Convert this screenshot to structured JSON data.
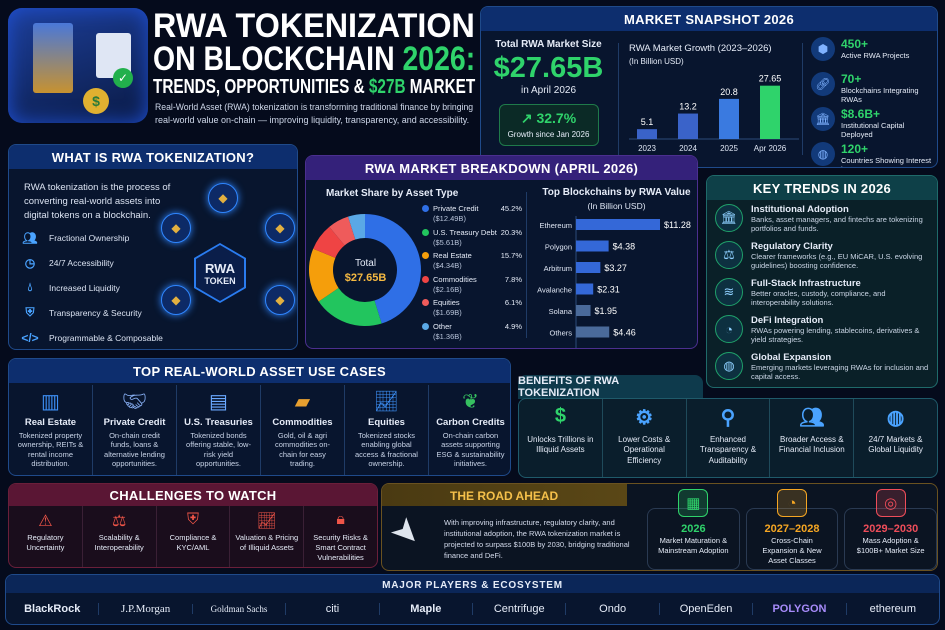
{
  "hero": {
    "title_line1": "RWA TOKENIZATION",
    "title_line2a": "ON BLOCKCHAIN ",
    "title_line2b": "2026:",
    "title_line3a": "TRENDS, OPPORTUNITIES & ",
    "title_line3b": "$27B",
    "title_line3c": " MARKET",
    "subtitle_line1": "Real-World Asset (RWA) tokenization is transforming traditional finance by bringing",
    "subtitle_line2": "real-world value on-chain — improving liquidity, transparency, and accessibility."
  },
  "snapshot": {
    "title": "MARKET SNAPSHOT 2026",
    "total_label": "Total RWA Market Size",
    "total_value": "$27.65B",
    "total_date": "in April 2026",
    "growth_value": "32.7%",
    "growth_label": "Growth since Jan 2026",
    "stats": [
      {
        "value": "450+",
        "label": "Active RWA Projects",
        "icon": "cube-icon"
      },
      {
        "value": "70+",
        "label": "Blockchains Integrating RWAs",
        "icon": "link-icon"
      },
      {
        "value": "$8.6B+",
        "label": "Institutional Capital Deployed",
        "icon": "bank-icon"
      },
      {
        "value": "120+",
        "label": "Countries Showing Interest in RWAs",
        "icon": "globe-icon"
      }
    ]
  },
  "chart_data": [
    {
      "type": "bar",
      "title": "RWA Market Growth (2023–2026)",
      "subtitle": "(In Billion USD)",
      "categories": [
        "2023",
        "2024",
        "2025",
        "Apr 2026"
      ],
      "values": [
        5.1,
        13.2,
        20.8,
        27.65
      ],
      "value_labels": [
        "5.1",
        "13.2",
        "20.8",
        "27.65"
      ],
      "colors": [
        "#3a63c9",
        "#3a63c9",
        "#3a7ae0",
        "#2fd36b"
      ]
    },
    {
      "type": "pie",
      "title": "Market Share by Asset Type",
      "center_label": "Total",
      "center_value": "$27.65B",
      "slices": [
        {
          "name": "Private Credit",
          "pct": 45.2,
          "pct_label": "45.2%",
          "amount": "($12.49B)",
          "color": "#2f6fe6"
        },
        {
          "name": "U.S. Treasury Debt",
          "pct": 20.3,
          "pct_label": "20.3%",
          "amount": "($5.61B)",
          "color": "#22c55e"
        },
        {
          "name": "Real Estate",
          "pct": 15.7,
          "pct_label": "15.7%",
          "amount": "($4.34B)",
          "color": "#f59e0b"
        },
        {
          "name": "Commodities",
          "pct": 7.8,
          "pct_label": "7.8%",
          "amount": "($2.16B)",
          "color": "#ef4444"
        },
        {
          "name": "Equities",
          "pct": 6.1,
          "pct_label": "6.1%",
          "amount": "($1.69B)",
          "color": "#ef5b5b"
        },
        {
          "name": "Other",
          "pct": 4.9,
          "pct_label": "4.9%",
          "amount": "($1.36B)",
          "color": "#5aa8e6"
        }
      ]
    },
    {
      "type": "bar",
      "orientation": "horizontal",
      "title": "Top Blockchains by RWA Value",
      "subtitle": "(In Billion USD)",
      "categories": [
        "Ethereum",
        "Polygon",
        "Arbitrum",
        "Avalanche",
        "Solana",
        "Others"
      ],
      "values": [
        11.28,
        4.38,
        3.27,
        2.31,
        1.95,
        4.46
      ],
      "value_labels": [
        "$11.28",
        "$4.38",
        "$3.27",
        "$2.31",
        "$1.95",
        "$4.46"
      ]
    }
  ],
  "breakdown": {
    "title": "RWA MARKET BREAKDOWN (APRIL 2026)"
  },
  "what": {
    "title": "WHAT IS RWA TOKENIZATION?",
    "desc_line1": "RWA tokenization is the process of",
    "desc_line2": "converting real-world assets into",
    "desc_line3": "digital tokens on a blockchain.",
    "token_line1": "RWA",
    "token_line2": "TOKEN",
    "features": [
      {
        "label": "Fractional Ownership",
        "icon": "people-icon"
      },
      {
        "label": "24/7 Accessibility",
        "icon": "clock-icon"
      },
      {
        "label": "Increased Liquidity",
        "icon": "droplet-icon"
      },
      {
        "label": "Transparency & Security",
        "icon": "shield-icon"
      },
      {
        "label": "Programmable & Composable",
        "icon": "code-icon"
      }
    ]
  },
  "trends": {
    "title": "KEY TRENDS IN 2026",
    "items": [
      {
        "title": "Institutional Adoption",
        "desc": "Banks, asset managers, and fintechs are tokenizing portfolios and funds.",
        "icon": "bank-icon"
      },
      {
        "title": "Regulatory Clarity",
        "desc": "Clearer frameworks (e.g., EU MiCAR, U.S. evolving guidelines) boosting confidence.",
        "icon": "gavel-icon"
      },
      {
        "title": "Full-Stack Infrastructure",
        "desc": "Better oracles, custody, compliance, and interoperability solutions.",
        "icon": "layers-icon"
      },
      {
        "title": "DeFi Integration",
        "desc": "RWAs powering lending, stablecoins, derivatives & yield strategies.",
        "icon": "pie-icon"
      },
      {
        "title": "Global Expansion",
        "desc": "Emerging markets leveraging RWAs for inclusion and capital access.",
        "icon": "globe-icon"
      }
    ]
  },
  "usecases": {
    "title": "TOP REAL-WORLD ASSET USE CASES",
    "items": [
      {
        "title": "Real Estate",
        "desc": "Tokenized property ownership, REITs & rental income distribution.",
        "icon": "building-icon"
      },
      {
        "title": "Private Credit",
        "desc": "On-chain credit funds, loans & alternative lending opportunities.",
        "icon": "handshake-icon"
      },
      {
        "title": "U.S. Treasuries",
        "desc": "Tokenized bonds offering stable, low-risk yield opportunities.",
        "icon": "document-shield-icon"
      },
      {
        "title": "Commodities",
        "desc": "Gold, oil & agri commodities on-chain for easy trading.",
        "icon": "gold-bars-icon"
      },
      {
        "title": "Equities",
        "desc": "Tokenized stocks enabling global access & fractional ownership.",
        "icon": "chart-monitor-icon"
      },
      {
        "title": "Carbon Credits",
        "desc": "On-chain carbon assets supporting ESG & sustainability initiatives.",
        "icon": "leaf-icon"
      }
    ]
  },
  "benefits": {
    "title": "BENEFITS OF RWA TOKENIZATION",
    "items": [
      {
        "label": "Unlocks Trillions in Illiquid Assets",
        "icon": "money-bag-icon"
      },
      {
        "label": "Lower Costs & Operational Efficiency",
        "icon": "gear-dollar-icon"
      },
      {
        "label": "Enhanced Transparency & Auditability",
        "icon": "magnifier-icon"
      },
      {
        "label": "Broader Access & Financial Inclusion",
        "icon": "people-icon"
      },
      {
        "label": "24/7 Markets & Global Liquidity",
        "icon": "globe-icon"
      }
    ]
  },
  "challenges": {
    "title": "CHALLENGES TO WATCH",
    "items": [
      {
        "label": "Regulatory Uncertainty",
        "icon": "warning-icon"
      },
      {
        "label": "Scalability & Interoperability",
        "icon": "scales-icon"
      },
      {
        "label": "Compliance & KYC/AML",
        "icon": "shield-check-icon"
      },
      {
        "label": "Valuation & Pricing of Illiquid Assets",
        "icon": "chart-up-icon"
      },
      {
        "label": "Security Risks & Smart Contract Vulnerabilities",
        "icon": "lock-icon"
      }
    ]
  },
  "road": {
    "title": "THE ROAD AHEAD",
    "desc": "With improving infrastructure, regulatory clarity, and institutional adoption, the RWA tokenization market is projected to surpass $100B by 2030, bridging traditional finance and DeFi.",
    "steps": [
      {
        "year": "2026",
        "label": "Market Maturation & Mainstream Adoption",
        "color": "#2fd36b",
        "icon": "calendar-icon"
      },
      {
        "year": "2027–2028",
        "label": "Cross-Chain Expansion & New Asset Classes",
        "color": "#f5a623",
        "icon": "pie-icon"
      },
      {
        "year": "2029–2030",
        "label": "Mass Adoption & $100B+ Market Size",
        "color": "#ef4d5a",
        "icon": "target-icon"
      }
    ]
  },
  "players": {
    "title": "MAJOR PLAYERS & ECOSYSTEM",
    "logos": [
      "BlackRock",
      "J.P.Morgan",
      "Goldman Sachs",
      "citi",
      "Maple",
      "Centrifuge",
      "Ondo",
      "OpenEden",
      "POLYGON",
      "ethereum"
    ]
  }
}
